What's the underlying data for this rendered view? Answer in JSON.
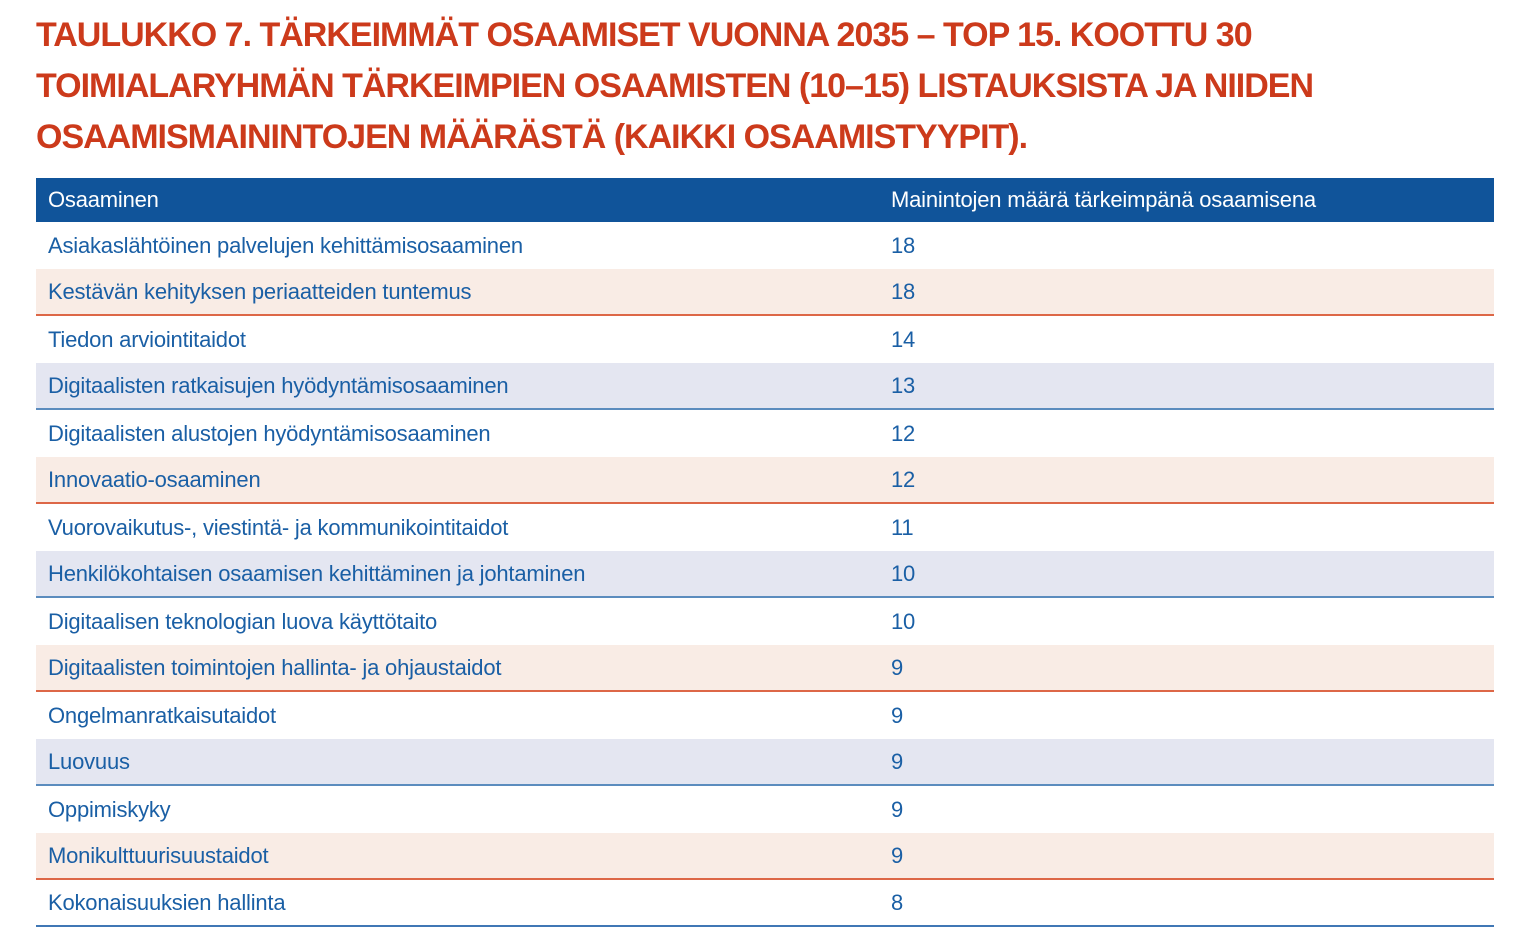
{
  "title_lines": [
    "TAULUKKO 7. TÄRKEIMMÄT OSAAMISET VUONNA 2035 – TOP 15. KOOTTU 30",
    "TOIMIALARYHMÄN TÄRKEIMPIEN OSAAMISTEN (10–15) LISTAUKSISTA JA NIIDEN",
    "OSAAMISMAININTOJEN MÄÄRÄSTÄ (KAIKKI OSAAMISTYYPIT)."
  ],
  "table": {
    "columns": {
      "skill": "Osaaminen",
      "count": "Mainintojen määrä tärkeimpänä osaamisena"
    },
    "rows": [
      {
        "skill": "Asiakaslähtöinen palvelujen kehittämisosaaminen",
        "count": 18
      },
      {
        "skill": "Kestävän kehityksen periaatteiden tuntemus",
        "count": 18
      },
      {
        "skill": "Tiedon arviointitaidot",
        "count": 14
      },
      {
        "skill": "Digitaalisten ratkaisujen hyödyntämisosaaminen",
        "count": 13
      },
      {
        "skill": "Digitaalisten alustojen hyödyntämisosaaminen",
        "count": 12
      },
      {
        "skill": "Innovaatio-osaaminen",
        "count": 12
      },
      {
        "skill": "Vuorovaikutus-, viestintä- ja kommunikointitaidot",
        "count": 11
      },
      {
        "skill": "Henkilökohtaisen osaamisen kehittäminen ja johtaminen",
        "count": 10
      },
      {
        "skill": "Digitaalisen teknologian luova käyttötaito",
        "count": 10
      },
      {
        "skill": "Digitaalisten toimintojen hallinta- ja ohjaustaidot",
        "count": 9
      },
      {
        "skill": "Ongelmanratkaisutaidot",
        "count": 9
      },
      {
        "skill": "Luovuus",
        "count": 9
      },
      {
        "skill": "Oppimiskyky",
        "count": 9
      },
      {
        "skill": "Monikulttuurisuustaidot",
        "count": 9
      },
      {
        "skill": "Kokonaisuuksien hallinta",
        "count": 8
      }
    ]
  },
  "colors": {
    "title_red": "#cc3a1b",
    "header_blue": "#10549a",
    "header_text": "#ffffff",
    "body_text_blue": "#1a5fa5",
    "peach_row_bg": "#f9ece5",
    "peach_row_rule": "#dd6747",
    "lavender_row_bg": "#e4e6f1",
    "lavender_row_rule": "#5b8cbe",
    "table_bottom_rule": "#4077b5"
  }
}
